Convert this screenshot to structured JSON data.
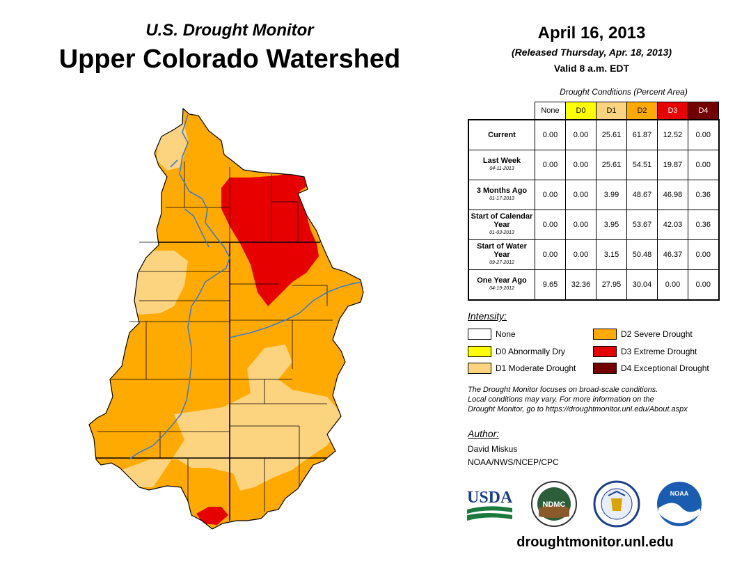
{
  "header": {
    "subtitle": "U.S. Drought Monitor",
    "title": "Upper Colorado Watershed",
    "date": "April 16, 2013",
    "released": "(Released Thursday, Apr. 18, 2013)",
    "valid": "Valid 8 a.m. EDT"
  },
  "conditions": {
    "caption": "Drought Conditions (Percent Area)",
    "columns": [
      "None",
      "D0",
      "D1",
      "D2",
      "D3",
      "D4"
    ],
    "column_colors": [
      "#ffffff",
      "#ffff00",
      "#fcd37f",
      "#ffaa00",
      "#e60000",
      "#730000"
    ],
    "rows": [
      {
        "label": "Current",
        "date": "",
        "values": [
          "0.00",
          "0.00",
          "25.61",
          "61.87",
          "12.52",
          "0.00"
        ]
      },
      {
        "label": "Last Week",
        "date": "04-11-2013",
        "values": [
          "0.00",
          "0.00",
          "25.61",
          "54.51",
          "19.87",
          "0.00"
        ]
      },
      {
        "label": "3 Months Ago",
        "date": "01-17-2013",
        "values": [
          "0.00",
          "0.00",
          "3.99",
          "48.67",
          "46.98",
          "0.36"
        ]
      },
      {
        "label": "Start of Calendar Year",
        "date": "01-03-2013",
        "values": [
          "0.00",
          "0.00",
          "3.95",
          "53.67",
          "42.03",
          "0.36"
        ]
      },
      {
        "label": "Start of Water Year",
        "date": "09-27-2012",
        "values": [
          "0.00",
          "0.00",
          "3.15",
          "50.48",
          "46.37",
          "0.00"
        ]
      },
      {
        "label": "One Year Ago",
        "date": "04-19-2012",
        "values": [
          "9.65",
          "32.36",
          "27.95",
          "30.04",
          "0.00",
          "0.00"
        ]
      }
    ]
  },
  "legend": {
    "title": "Intensity:",
    "items": [
      {
        "label": "None",
        "color": "#ffffff"
      },
      {
        "label": "D0 Abnormally Dry",
        "color": "#ffff00"
      },
      {
        "label": "D1 Moderate Drought",
        "color": "#fcd37f"
      },
      {
        "label": "D2 Severe Drought",
        "color": "#ffaa00"
      },
      {
        "label": "D3 Extreme Drought",
        "color": "#e60000"
      },
      {
        "label": "D4 Exceptional Drought",
        "color": "#730000"
      }
    ]
  },
  "note": {
    "line1": "The Drought Monitor focuses on broad-scale conditions.",
    "line2": "Local conditions may vary. For more information on the",
    "line3": "Drought Monitor, go to https://droughtmonitor.unl.edu/About.aspx"
  },
  "author": {
    "label": "Author:",
    "name": "David Miskus",
    "org": "NOAA/NWS/NCEP/CPC"
  },
  "logos": {
    "usda": "USDA",
    "ndmc": "NDMC",
    "noaa": "NOAA"
  },
  "footer": {
    "url": "droughtmonitor.unl.edu"
  }
}
